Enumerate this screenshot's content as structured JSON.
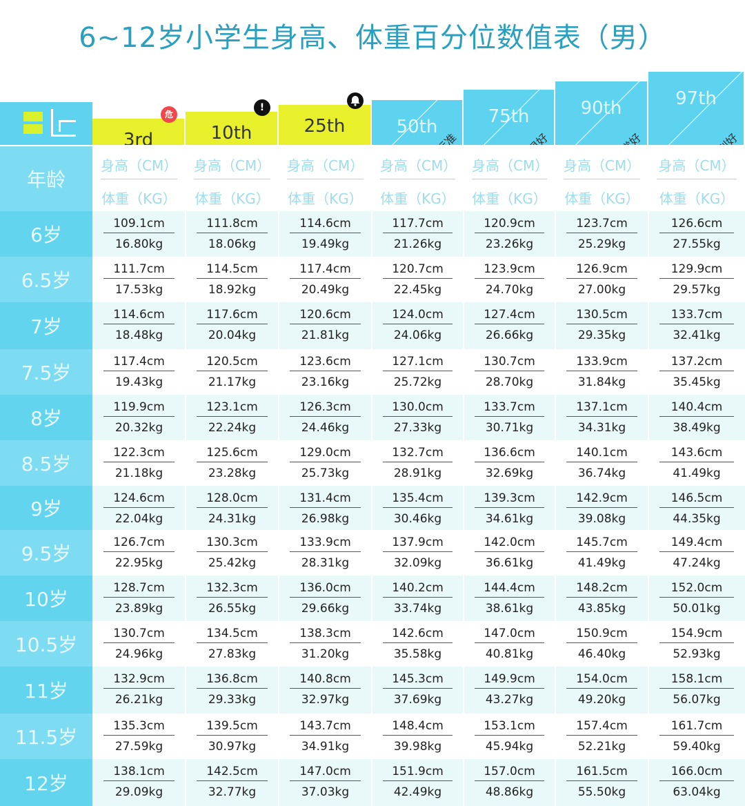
{
  "title": "6~12岁小学生身高、体重百分位数值表（男）",
  "corner_label": "年龄",
  "subheader": {
    "height": "身高（CM）",
    "weight": "体重（KG）"
  },
  "columns": [
    {
      "label": "3rd",
      "style": "yellow",
      "badge": "危",
      "badge_type": "red"
    },
    {
      "label": "10th",
      "style": "yellow",
      "badge": "!",
      "badge_type": "black"
    },
    {
      "label": "25th",
      "style": "yellow",
      "badge": "bell-icon",
      "badge_type": "black"
    },
    {
      "label": "50th",
      "style": "blue",
      "tag": "标准"
    },
    {
      "label": "75th",
      "style": "blue",
      "tag": "很好"
    },
    {
      "label": "90th",
      "style": "blue",
      "tag": "非常好"
    },
    {
      "label": "97th",
      "style": "blue",
      "tag": "特别好"
    }
  ],
  "rows": [
    {
      "age": "6岁",
      "cells": [
        [
          "109.1cm",
          "16.80kg"
        ],
        [
          "111.8cm",
          "18.06kg"
        ],
        [
          "114.6cm",
          "19.49kg"
        ],
        [
          "117.7cm",
          "21.26kg"
        ],
        [
          "120.9cm",
          "23.26kg"
        ],
        [
          "123.7cm",
          "25.29kg"
        ],
        [
          "126.6cm",
          "27.55kg"
        ]
      ]
    },
    {
      "age": "6.5岁",
      "cells": [
        [
          "111.7cm",
          "17.53kg"
        ],
        [
          "114.5cm",
          "18.92kg"
        ],
        [
          "117.4cm",
          "20.49kg"
        ],
        [
          "120.7cm",
          "22.45kg"
        ],
        [
          "123.9cm",
          "24.70kg"
        ],
        [
          "126.9cm",
          "27.00kg"
        ],
        [
          "129.9cm",
          "29.57kg"
        ]
      ]
    },
    {
      "age": "7岁",
      "cells": [
        [
          "114.6cm",
          "18.48kg"
        ],
        [
          "117.6cm",
          "20.04kg"
        ],
        [
          "120.6cm",
          "21.81kg"
        ],
        [
          "124.0cm",
          "24.06kg"
        ],
        [
          "127.4cm",
          "26.66kg"
        ],
        [
          "130.5cm",
          "29.35kg"
        ],
        [
          "133.7cm",
          "32.41kg"
        ]
      ]
    },
    {
      "age": "7.5岁",
      "cells": [
        [
          "117.4cm",
          "19.43kg"
        ],
        [
          "120.5cm",
          "21.17kg"
        ],
        [
          "123.6cm",
          "23.16kg"
        ],
        [
          "127.1cm",
          "25.72kg"
        ],
        [
          "130.7cm",
          "28.70kg"
        ],
        [
          "133.9cm",
          "31.84kg"
        ],
        [
          "137.2cm",
          "35.45kg"
        ]
      ]
    },
    {
      "age": "8岁",
      "cells": [
        [
          "119.9cm",
          "20.32kg"
        ],
        [
          "123.1cm",
          "22.24kg"
        ],
        [
          "126.3cm",
          "24.46kg"
        ],
        [
          "130.0cm",
          "27.33kg"
        ],
        [
          "133.7cm",
          "30.71kg"
        ],
        [
          "137.1cm",
          "34.31kg"
        ],
        [
          "140.4cm",
          "38.49kg"
        ]
      ]
    },
    {
      "age": "8.5岁",
      "cells": [
        [
          "122.3cm",
          "21.18kg"
        ],
        [
          "125.6cm",
          "23.28kg"
        ],
        [
          "129.0cm",
          "25.73kg"
        ],
        [
          "132.7cm",
          "28.91kg"
        ],
        [
          "136.6cm",
          "32.69kg"
        ],
        [
          "140.1cm",
          "36.74kg"
        ],
        [
          "143.6cm",
          "41.49kg"
        ]
      ]
    },
    {
      "age": "9岁",
      "cells": [
        [
          "124.6cm",
          "22.04kg"
        ],
        [
          "128.0cm",
          "24.31kg"
        ],
        [
          "131.4cm",
          "26.98kg"
        ],
        [
          "135.4cm",
          "30.46kg"
        ],
        [
          "139.3cm",
          "34.61kg"
        ],
        [
          "142.9cm",
          "39.08kg"
        ],
        [
          "146.5cm",
          "44.35kg"
        ]
      ]
    },
    {
      "age": "9.5岁",
      "cells": [
        [
          "126.7cm",
          "22.95kg"
        ],
        [
          "130.3cm",
          "25.42kg"
        ],
        [
          "133.9cm",
          "28.31kg"
        ],
        [
          "137.9cm",
          "32.09kg"
        ],
        [
          "142.0cm",
          "36.61kg"
        ],
        [
          "145.7cm",
          "41.49kg"
        ],
        [
          "149.4cm",
          "47.24kg"
        ]
      ]
    },
    {
      "age": "10岁",
      "cells": [
        [
          "128.7cm",
          "23.89kg"
        ],
        [
          "132.3cm",
          "26.55kg"
        ],
        [
          "136.0cm",
          "29.66kg"
        ],
        [
          "140.2cm",
          "33.74kg"
        ],
        [
          "144.4cm",
          "38.61kg"
        ],
        [
          "148.2cm",
          "43.85kg"
        ],
        [
          "152.0cm",
          "50.01kg"
        ]
      ]
    },
    {
      "age": "10.5岁",
      "cells": [
        [
          "130.7cm",
          "24.96kg"
        ],
        [
          "134.5cm",
          "27.83kg"
        ],
        [
          "138.3cm",
          "31.20kg"
        ],
        [
          "142.6cm",
          "35.58kg"
        ],
        [
          "147.0cm",
          "40.81kg"
        ],
        [
          "150.9cm",
          "46.40kg"
        ],
        [
          "154.9cm",
          "52.93kg"
        ]
      ]
    },
    {
      "age": "11岁",
      "cells": [
        [
          "132.9cm",
          "26.21kg"
        ],
        [
          "136.8cm",
          "29.33kg"
        ],
        [
          "140.8cm",
          "32.97kg"
        ],
        [
          "145.3cm",
          "37.69kg"
        ],
        [
          "149.9cm",
          "43.27kg"
        ],
        [
          "154.0cm",
          "49.20kg"
        ],
        [
          "158.1cm",
          "56.07kg"
        ]
      ]
    },
    {
      "age": "11.5岁",
      "cells": [
        [
          "135.3cm",
          "27.59kg"
        ],
        [
          "139.5cm",
          "30.97kg"
        ],
        [
          "143.7cm",
          "34.91kg"
        ],
        [
          "148.4cm",
          "39.98kg"
        ],
        [
          "153.1cm",
          "45.94kg"
        ],
        [
          "157.4cm",
          "52.21kg"
        ],
        [
          "161.7cm",
          "59.40kg"
        ]
      ]
    },
    {
      "age": "12岁",
      "cells": [
        [
          "138.1cm",
          "29.09kg"
        ],
        [
          "142.5cm",
          "32.77kg"
        ],
        [
          "147.0cm",
          "37.03kg"
        ],
        [
          "151.9cm",
          "42.49kg"
        ],
        [
          "157.0cm",
          "48.86kg"
        ],
        [
          "161.5cm",
          "55.50kg"
        ],
        [
          "166.0cm",
          "63.04kg"
        ]
      ]
    }
  ]
}
